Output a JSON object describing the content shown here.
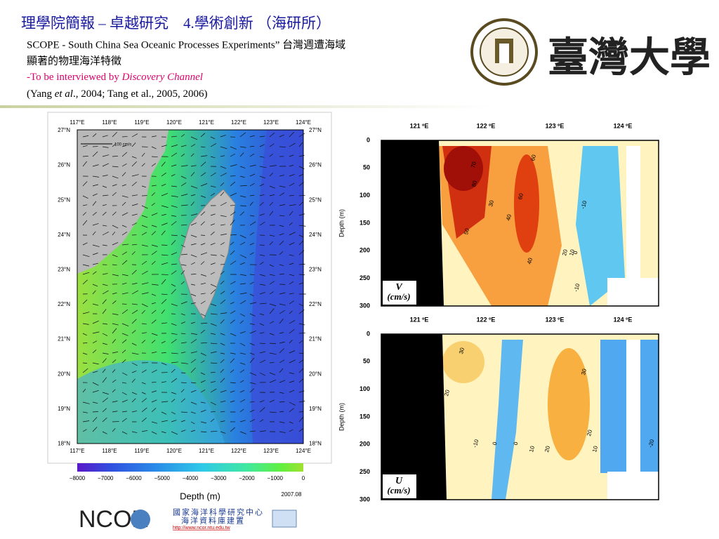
{
  "header": {
    "title": "理學院簡報 – 卓越研究　4.學術創新 （海研所）",
    "line1": "SCOPE - South China Sea Oceanic Processes Experiments” 台灣週遭海域",
    "line2": "顯著的物理海洋特徵",
    "line3a": "-To be interviewed by ",
    "line3b": "Discovery Channel",
    "line4a": "(Yang ",
    "line4b": "et al",
    "line4c": "., 2004; Tang et al., 2005, 2006)",
    "logo": "臺灣大學"
  },
  "map": {
    "lon_labels": [
      "117°E",
      "118°E",
      "119°E",
      "120°E",
      "121°E",
      "122°E",
      "123°E",
      "124°E"
    ],
    "lat_labels": [
      "27°N",
      "26°N",
      "25°N",
      "24°N",
      "23°N",
      "22°N",
      "21°N",
      "20°N",
      "19°N",
      "18°N"
    ],
    "scale": "100 cm/s",
    "colorbar_ticks": [
      "−8000",
      "−7000",
      "−6000",
      "−5000",
      "−4000",
      "−3000",
      "−2000",
      "−1000",
      "0"
    ],
    "colorbar_label": "Depth (m)",
    "date": "2007.08"
  },
  "sections": {
    "lon_labels": [
      "121 ºE",
      "122 ºE",
      "123 ºE",
      "124 ºE"
    ],
    "depth_ticks": [
      "0",
      "50",
      "100",
      "150",
      "200",
      "250",
      "300"
    ],
    "ylabel": "Depth (m)",
    "panels": [
      {
        "var": "V",
        "unit": "(cm/s)",
        "contours": [
          "70",
          "80",
          "60",
          "30",
          "40",
          "50",
          "60",
          "40",
          "20",
          "10",
          "0",
          "-10",
          "-10"
        ]
      },
      {
        "var": "U",
        "unit": "(cm/s)",
        "contours": [
          "30",
          "20",
          "-10",
          "0",
          "0",
          "10",
          "20",
          "30",
          "20",
          "10",
          "-20"
        ]
      }
    ]
  },
  "footer": {
    "brand": "NCOR",
    "org1": "國家海洋科學研究中心",
    "org2": "海洋資料庫建置",
    "url": "http://www.ncor.ntu.edu.tw"
  }
}
